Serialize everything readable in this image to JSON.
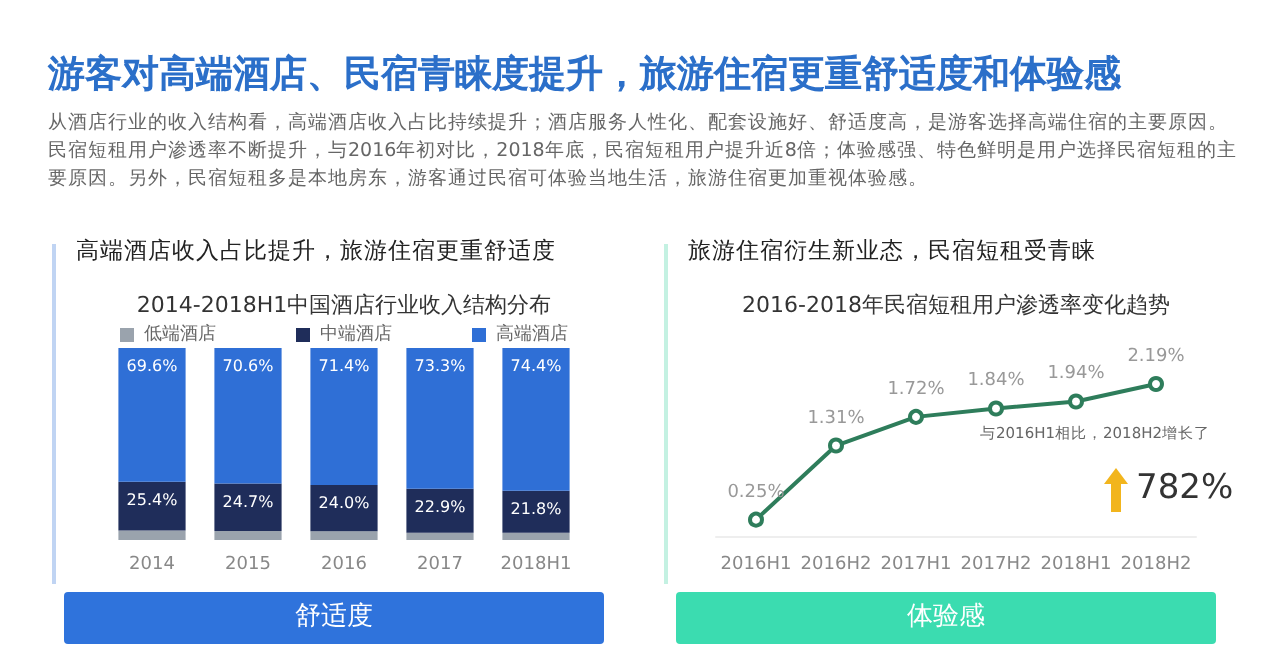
{
  "chart_data": [
    {
      "type": "other",
      "title": "游客对高端酒店、民宿青睐度提升，旅游住宿更重舒适度和体验感",
      "annotations": [
        "从酒店行业的收入结构看，高端酒店收入占比持续提升；酒店服务人性化、配套设施好、舒适度高，是游客选择高端住宿的主要原因。民宿短租用户渗透率不断提升，与2016年初对比，2018年底，民宿短租用户提升近8倍；体验感强、特色鲜明是用户选择民宿短租的主要原因。另外，民宿短租多是本地房东，游客通过民宿可体验当地生活，旅游住宿更加重视体验感。"
      ]
    },
    {
      "type": "bar",
      "subtitle": "高端酒店收入占比提升，旅游住宿更重舒适度",
      "title": "2014-2018H1中国酒店行业收入结构分布",
      "categories": [
        "2014",
        "2015",
        "2016",
        "2017",
        "2018H1"
      ],
      "stacked": true,
      "legend": "top",
      "grid": false,
      "tick_labels": "x",
      "annotations": [
        "舒适度"
      ],
      "series": [
        {
          "name": "低端酒店",
          "color": "#9aa3ad",
          "values": [
            5.0,
            4.7,
            4.6,
            3.8,
            3.8
          ]
        },
        {
          "name": "中端酒店",
          "color": "#1f2d5a",
          "values": [
            25.4,
            24.7,
            24.0,
            22.9,
            21.8
          ],
          "value_labels": [
            "25.4%",
            "24.7%",
            "24.0%",
            "22.9%",
            "21.8%"
          ]
        },
        {
          "name": "高端酒店",
          "color": "#2f6fd6",
          "values": [
            69.6,
            70.6,
            71.4,
            73.3,
            74.4
          ],
          "value_labels": [
            "69.6%",
            "70.6%",
            "71.4%",
            "73.3%",
            "74.4%"
          ]
        }
      ]
    },
    {
      "type": "line",
      "subtitle": "旅游住宿衍生新业态，民宿短租受青睐",
      "title": "2016-2018年民宿短租用户渗透率变化趋势",
      "categories": [
        "2016H1",
        "2016H2",
        "2017H1",
        "2017H2",
        "2018H1",
        "2018H2"
      ],
      "legend": false,
      "grid": false,
      "tick_labels": "x",
      "marker": "circle",
      "line_style": "solid",
      "annotations": [
        "与2016H1相比，2018H2增长了",
        "782%",
        "体验感"
      ],
      "series": [
        {
          "color": "#2e7d5b",
          "values": [
            0.25,
            1.31,
            1.72,
            1.84,
            1.94,
            2.19
          ],
          "value_labels": [
            "0.25%",
            "1.31%",
            "1.72%",
            "1.84%",
            "1.94%",
            "2.19%"
          ]
        }
      ]
    }
  ]
}
